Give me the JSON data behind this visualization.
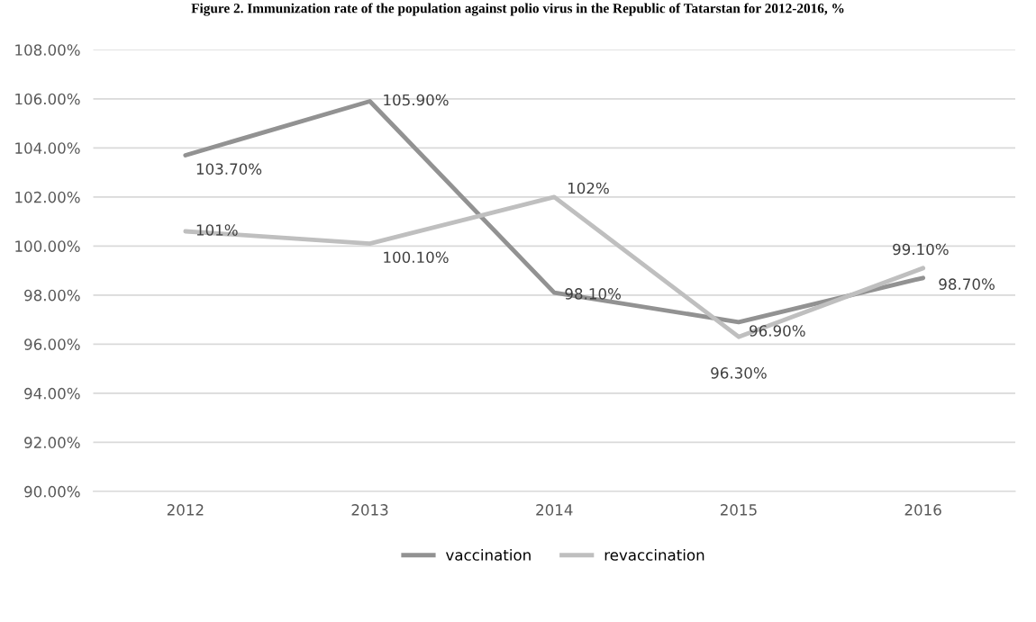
{
  "chart_data": {
    "type": "line",
    "title": "Figure 2. Immunization rate of the population against polio virus in the Republic of Tatarstan for 2012-2016, %",
    "categories": [
      "2012",
      "2013",
      "2014",
      "2015",
      "2016"
    ],
    "series": [
      {
        "name": "vaccination",
        "color": "#929292",
        "values": [
          103.7,
          105.9,
          98.1,
          96.9,
          98.7
        ],
        "value_labels": [
          "103.70%",
          "105.90%",
          "98.10%",
          "96.90%",
          "98.70%"
        ]
      },
      {
        "name": "revaccination",
        "color": "#bfbfbf",
        "values": [
          100.6,
          100.1,
          102,
          96.3,
          99.1
        ],
        "value_labels": [
          "101%",
          "100.10%",
          "102%",
          "96.30%",
          "99.10%"
        ]
      }
    ],
    "ylim": [
      90,
      108
    ],
    "yticks": [
      {
        "value": 90,
        "label": "90.00%"
      },
      {
        "value": 92,
        "label": "92.00%"
      },
      {
        "value": 94,
        "label": "94.00%"
      },
      {
        "value": 96,
        "label": "96.00%"
      },
      {
        "value": 98,
        "label": "98.00%"
      },
      {
        "value": 100,
        "label": "100.00%"
      },
      {
        "value": 102,
        "label": "102.00%"
      },
      {
        "value": 104,
        "label": "104.00%"
      },
      {
        "value": 106,
        "label": "106.00%"
      },
      {
        "value": 108,
        "label": "108.00%"
      }
    ],
    "grid": "y",
    "legend": "bottom",
    "marker": "none",
    "line_style": "solid"
  }
}
